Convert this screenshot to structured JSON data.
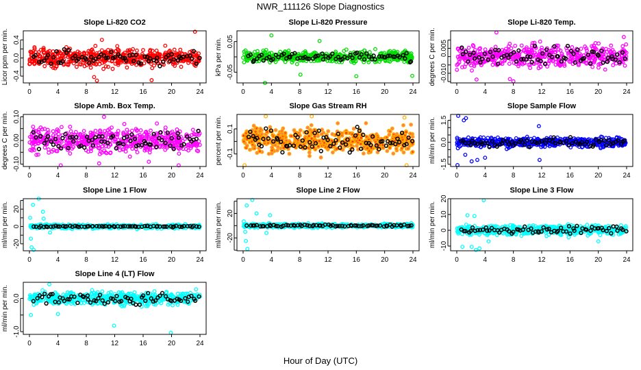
{
  "figure": {
    "title": "NWR_111126  Slope Diagnostics",
    "xlabel": "Hour of Day (UTC)"
  },
  "chart_data": [
    {
      "type": "scatter",
      "title": "Slope Li-820 CO2",
      "ylabel": "Licor ppm per min.",
      "color": "#FF0000",
      "xlim": [
        0,
        24
      ],
      "xticks": [
        0,
        4,
        8,
        12,
        16,
        20,
        24
      ],
      "ylim": [
        -0.55,
        0.6
      ],
      "yticks": [
        -0.4,
        -0.2,
        0,
        0.2,
        0.4
      ],
      "ytick_labels": {
        "-0.4": "-0.4",
        "0": "0.0",
        "0.4": "0.4"
      },
      "spread": 0.14,
      "black_spread": 0.1,
      "outliers": [
        [
          9.5,
          -0.5
        ],
        [
          17.2,
          -0.49
        ],
        [
          23.3,
          0.58
        ],
        [
          10.2,
          0.4
        ],
        [
          9.1,
          -0.42
        ]
      ]
    },
    {
      "type": "scatter",
      "title": "Slope Li-820 Pressure",
      "ylabel": "kPa per min.",
      "color": "#00DD00",
      "xlim": [
        0,
        24
      ],
      "xticks": [
        0,
        4,
        8,
        12,
        16,
        20,
        24
      ],
      "ylim": [
        -0.085,
        0.085
      ],
      "yticks": [
        -0.05,
        0,
        0.05
      ],
      "ytick_labels": {
        "-0.05": "-0.05",
        "0.05": "0.05"
      },
      "spread": 0.012,
      "black_spread": 0.01,
      "outliers": [
        [
          3.1,
          -0.085
        ],
        [
          4.0,
          0.07
        ],
        [
          8.1,
          -0.058
        ],
        [
          16,
          -0.063
        ],
        [
          23.9,
          -0.062
        ],
        [
          10.8,
          0.052
        ]
      ]
    },
    {
      "type": "scatter",
      "title": "Slope Li-820 Temp.",
      "ylabel": "degrees C per min.",
      "color": "#FF00FF",
      "xlim": [
        0,
        24
      ],
      "xticks": [
        0,
        4,
        8,
        12,
        16,
        20,
        24
      ],
      "ylim": [
        -0.0158,
        0.0155
      ],
      "yticks": [
        -0.015,
        -0.01,
        -0.005,
        0,
        0.005,
        0.01
      ],
      "ytick_labels": {
        "-0.01": "-0.010",
        "0.005": "0.005"
      },
      "spread": 0.0045,
      "black_spread": 0.0045,
      "outliers": [
        [
          5.6,
          0.0145
        ],
        [
          8.0,
          -0.0148
        ],
        [
          7.5,
          -0.0135
        ],
        [
          23.6,
          0.0118
        ],
        [
          2.8,
          -0.0138
        ]
      ]
    },
    {
      "type": "scatter",
      "title": "Slope Amb. Box Temp.",
      "ylabel": "degrees C per min.",
      "color": "#FF00FF",
      "xlim": [
        0,
        24
      ],
      "xticks": [
        0,
        4,
        8,
        12,
        16,
        20,
        24
      ],
      "ylim": [
        -0.11,
        0.11
      ],
      "yticks": [
        -0.1,
        -0.05,
        0,
        0.05,
        0.1
      ],
      "ytick_labels": {
        "-0.1": "-0.10",
        "0": "0.00",
        "0.1": "0.10"
      },
      "spread": 0.035,
      "black_spread": 0.03,
      "outliers": [
        [
          10.5,
          0.1
        ],
        [
          4.4,
          -0.105
        ],
        [
          21,
          -0.105
        ],
        [
          16.8,
          -0.09
        ],
        [
          9.8,
          -0.097
        ]
      ]
    },
    {
      "type": "scatter",
      "title": "Slope Gas Stream RH",
      "ylabel": "percent per min.",
      "color": "#FFB000",
      "inner": "#FF2000",
      "xlim": [
        0,
        24
      ],
      "xticks": [
        0,
        4,
        8,
        12,
        16,
        20,
        24
      ],
      "ylim": [
        -0.2,
        0.215
      ],
      "yticks": [
        -0.1,
        0,
        0.1
      ],
      "ytick_labels": {
        "-0.1": "-0.1",
        "0.1": "0.1"
      },
      "spread": 0.07,
      "black_spread": 0.07,
      "outliers": [
        [
          0.2,
          -0.19
        ],
        [
          3.2,
          0.2
        ],
        [
          9.7,
          0.2
        ],
        [
          23.1,
          -0.19
        ],
        [
          22.8,
          0.19
        ]
      ]
    },
    {
      "type": "scatter",
      "title": "Slope Sample Flow",
      "ylabel": "ml/min per min.",
      "color": "#0000FF",
      "xlim": [
        0,
        24
      ],
      "xticks": [
        0,
        4,
        8,
        12,
        16,
        20,
        24
      ],
      "ylim": [
        -1.65,
        1.9
      ],
      "yticks": [
        -1.5,
        -1,
        -0.5,
        0,
        0.5,
        1,
        1.5
      ],
      "ytick_labels": {
        "-1.5": "-1.5",
        "0": "0.0",
        "1.5": "1.5"
      },
      "spread": 0.22,
      "black_spread": 0.2,
      "outliers": [
        [
          0.1,
          -1.55
        ],
        [
          0.2,
          1.8
        ],
        [
          1.3,
          1.65
        ],
        [
          1,
          1.5
        ],
        [
          2.1,
          -1.3
        ],
        [
          1.2,
          -0.85
        ],
        [
          4,
          -1.05
        ],
        [
          11.6,
          1.1
        ],
        [
          11.7,
          -1.2
        ],
        [
          2.9,
          -1.2
        ]
      ]
    },
    {
      "type": "scatter",
      "title": "Slope Line 1 Flow",
      "ylabel": "ml/min per min.",
      "color": "#00FFFF",
      "xlim": [
        0,
        24
      ],
      "xticks": [
        0,
        4,
        8,
        12,
        16,
        20,
        24
      ],
      "ylim": [
        -28,
        32
      ],
      "yticks": [
        -20,
        -10,
        0,
        10,
        20,
        30
      ],
      "ytick_labels": {
        "-20": "-20",
        "0": "0",
        "20": "20"
      },
      "spread": 1.6,
      "black_spread": 0.5,
      "outliers": [
        [
          0.1,
          10
        ],
        [
          0.2,
          -14
        ],
        [
          0.3,
          -24
        ],
        [
          0.5,
          25
        ],
        [
          0.6,
          -27
        ],
        [
          1.3,
          32
        ],
        [
          1.9,
          17
        ],
        [
          2.0,
          9
        ],
        [
          2.9,
          -7
        ]
      ]
    },
    {
      "type": "scatter",
      "title": "Slope Line 2 Flow",
      "ylabel": "ml/min per min.",
      "color": "#00FFFF",
      "xlim": [
        0,
        24
      ],
      "xticks": [
        0,
        4,
        8,
        12,
        16,
        20,
        24
      ],
      "ylim": [
        -41,
        44
      ],
      "yticks": [
        -40,
        -20,
        0,
        20,
        40
      ],
      "ytick_labels": {
        "-20": "-20",
        "20": "20"
      },
      "spread": 2.2,
      "black_spread": 1.2,
      "outliers": [
        [
          0.1,
          7
        ],
        [
          0.4,
          -25
        ],
        [
          0.5,
          33
        ],
        [
          0.6,
          -38
        ],
        [
          1.3,
          42
        ],
        [
          1.9,
          20
        ],
        [
          3.8,
          17
        ],
        [
          3.3,
          -12
        ],
        [
          0.3,
          -10
        ]
      ]
    },
    {
      "type": "scatter",
      "title": "Slope Line 3 Flow",
      "ylabel": "ml/min per min.",
      "color": "#00FFFF",
      "xlim": [
        0,
        24
      ],
      "xticks": [
        0,
        4,
        8,
        12,
        16,
        20,
        24
      ],
      "ylim": [
        -13,
        20
      ],
      "yticks": [
        -10,
        0,
        10,
        20
      ],
      "ytick_labels": {
        "-10": "-10",
        "0": "0",
        "10": "10",
        "20": "20"
      },
      "spread": 2.2,
      "black_spread": 1.8,
      "outliers": [
        [
          3.8,
          19
        ],
        [
          1.5,
          9.5
        ],
        [
          2.5,
          9
        ],
        [
          0.8,
          -10.5
        ],
        [
          2.1,
          -10.5
        ],
        [
          3.2,
          -11.5
        ],
        [
          2.7,
          -12.5
        ],
        [
          20,
          -7
        ],
        [
          15.8,
          -4.5
        ],
        [
          4.5,
          -7
        ]
      ]
    },
    {
      "type": "scatter",
      "title": "Slope Line 4 (LT) Flow",
      "ylabel": "ml/min per min.",
      "color": "#00FFFF",
      "xlim": [
        0,
        24
      ],
      "xticks": [
        0,
        4,
        8,
        12,
        16,
        20,
        24
      ],
      "ylim": [
        -1.08,
        0.48
      ],
      "yticks": [
        -1,
        -0.5,
        0
      ],
      "ytick_labels": {
        "-1": "-1.0",
        "0": "0.0"
      },
      "spread": 0.13,
      "black_spread": 0.13,
      "outliers": [
        [
          11.9,
          -0.82
        ],
        [
          19.9,
          -1.03
        ],
        [
          0.2,
          -0.5
        ],
        [
          4,
          -0.47
        ],
        [
          2.8,
          0.42
        ]
      ]
    }
  ]
}
